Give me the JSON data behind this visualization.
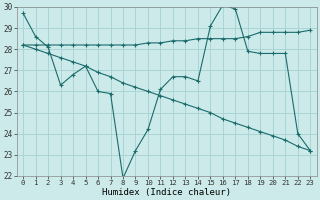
{
  "xlabel": "Humidex (Indice chaleur)",
  "xlim": [
    -0.5,
    23.5
  ],
  "ylim": [
    22,
    30
  ],
  "yticks": [
    22,
    23,
    24,
    25,
    26,
    27,
    28,
    29,
    30
  ],
  "xticks": [
    0,
    1,
    2,
    3,
    4,
    5,
    6,
    7,
    8,
    9,
    10,
    11,
    12,
    13,
    14,
    15,
    16,
    17,
    18,
    19,
    20,
    21,
    22,
    23
  ],
  "background_color": "#cceaea",
  "grid_color": "#aad4d4",
  "line_color": "#1a6b6b",
  "line1": {
    "x": [
      0,
      1,
      2,
      3,
      4,
      5,
      6,
      7,
      8,
      9,
      10,
      11,
      12,
      13,
      14,
      15,
      16,
      17,
      18,
      19,
      20,
      21,
      22,
      23
    ],
    "y": [
      29.7,
      28.6,
      28.1,
      26.3,
      26.8,
      27.2,
      26.0,
      25.9,
      21.9,
      23.2,
      24.2,
      26.1,
      26.7,
      26.7,
      26.5,
      29.1,
      30.1,
      29.9,
      27.9,
      27.8,
      27.8,
      27.8,
      24.0,
      23.2
    ]
  },
  "line2": {
    "x": [
      0,
      1,
      2,
      3,
      4,
      5,
      6,
      7,
      8,
      9,
      10,
      11,
      12,
      13,
      14,
      15,
      16,
      17,
      18,
      19,
      20,
      21,
      22,
      23
    ],
    "y": [
      28.2,
      28.0,
      27.8,
      27.6,
      27.4,
      27.2,
      26.9,
      26.7,
      26.4,
      26.2,
      26.0,
      25.8,
      25.6,
      25.4,
      25.2,
      25.0,
      24.7,
      24.5,
      24.3,
      24.1,
      23.9,
      23.7,
      23.4,
      23.2
    ]
  },
  "line3": {
    "x": [
      0,
      1,
      2,
      3,
      4,
      5,
      6,
      7,
      8,
      9,
      10,
      11,
      12,
      13,
      14,
      15,
      16,
      17,
      18,
      19,
      20,
      21,
      22,
      23
    ],
    "y": [
      28.2,
      28.2,
      28.2,
      28.2,
      28.2,
      28.2,
      28.2,
      28.2,
      28.2,
      28.2,
      28.3,
      28.3,
      28.4,
      28.4,
      28.5,
      28.5,
      28.5,
      28.5,
      28.6,
      28.8,
      28.8,
      28.8,
      28.8,
      28.9
    ]
  }
}
